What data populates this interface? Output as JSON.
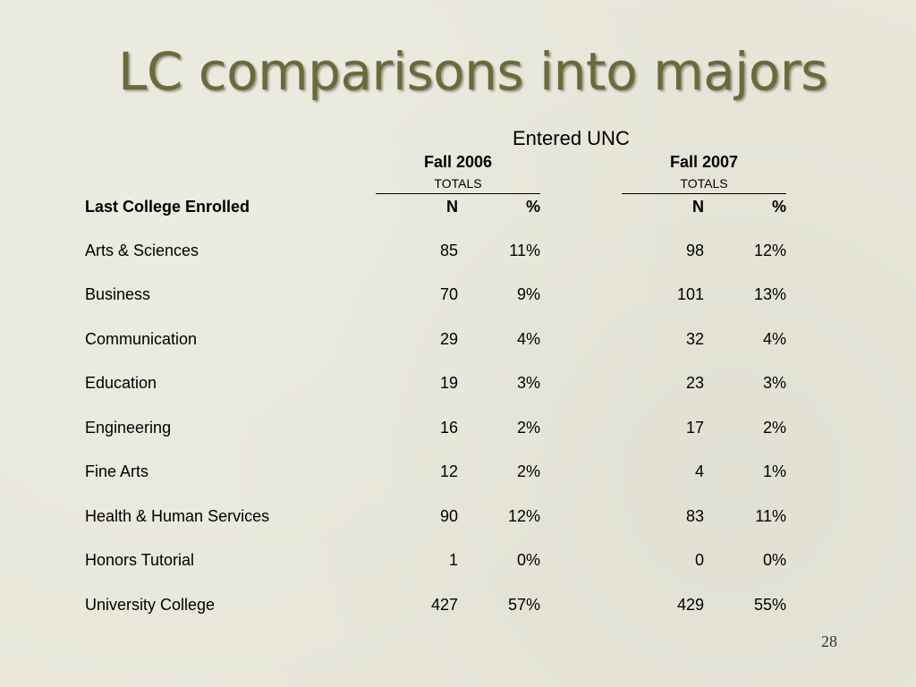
{
  "slide": {
    "title": "LC comparisons into majors",
    "group_header": "Entered UNC",
    "row_header": "Last College Enrolled",
    "page_number": "28"
  },
  "terms": [
    {
      "label": "Fall 2006",
      "sublabel": "TOTALS",
      "n_header": "N",
      "pct_header": "%"
    },
    {
      "label": "Fall 2007",
      "sublabel": "TOTALS",
      "n_header": "N",
      "pct_header": "%"
    }
  ],
  "rows": [
    {
      "college": "Arts & Sciences",
      "fall2006_n": "85",
      "fall2006_pct": "11%",
      "fall2007_n": "98",
      "fall2007_pct": "12%"
    },
    {
      "college": "Business",
      "fall2006_n": "70",
      "fall2006_pct": "9%",
      "fall2007_n": "101",
      "fall2007_pct": "13%"
    },
    {
      "college": "Communication",
      "fall2006_n": "29",
      "fall2006_pct": "4%",
      "fall2007_n": "32",
      "fall2007_pct": "4%"
    },
    {
      "college": "Education",
      "fall2006_n": "19",
      "fall2006_pct": "3%",
      "fall2007_n": "23",
      "fall2007_pct": "3%"
    },
    {
      "college": "Engineering",
      "fall2006_n": "16",
      "fall2006_pct": "2%",
      "fall2007_n": "17",
      "fall2007_pct": "2%"
    },
    {
      "college": "Fine Arts",
      "fall2006_n": "12",
      "fall2006_pct": "2%",
      "fall2007_n": "4",
      "fall2007_pct": "1%"
    },
    {
      "college": "Health & Human Services",
      "fall2006_n": "90",
      "fall2006_pct": "12%",
      "fall2007_n": "83",
      "fall2007_pct": "11%"
    },
    {
      "college": "Honors Tutorial",
      "fall2006_n": "1",
      "fall2006_pct": "0%",
      "fall2007_n": "0",
      "fall2007_pct": "0%"
    },
    {
      "college": "University College",
      "fall2006_n": "427",
      "fall2006_pct": "57%",
      "fall2007_n": "429",
      "fall2007_pct": "55%"
    }
  ],
  "theme": {
    "background": "#e8e7da",
    "title_color": "#6b6a3a",
    "text_color": "#000000"
  }
}
